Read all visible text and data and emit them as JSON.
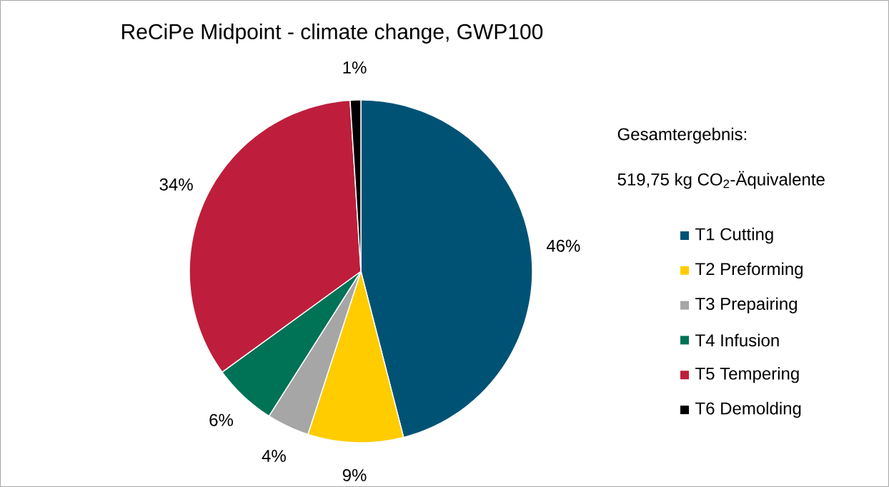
{
  "chart_data": {
    "type": "pie",
    "title": "ReCiPe Midpoint - climate change, GWP100",
    "categories": [
      "T1 Cutting",
      "T2 Preforming",
      "T3 Prepairing",
      "T4 Infusion",
      "T5 Tempering",
      "T6 Demolding"
    ],
    "values": [
      46,
      9,
      4,
      6,
      34,
      1
    ],
    "value_labels": [
      "46%",
      "9%",
      "4%",
      "6%",
      "34%",
      "1%"
    ],
    "colors": [
      "#005275",
      "#ffcc00",
      "#a6a6a6",
      "#007256",
      "#be1e3c",
      "#000000"
    ],
    "legend": "right",
    "annotations": [
      "Gesamtergebnis:",
      "519,75 kg CO$_{2}$-Äquivalente"
    ]
  }
}
